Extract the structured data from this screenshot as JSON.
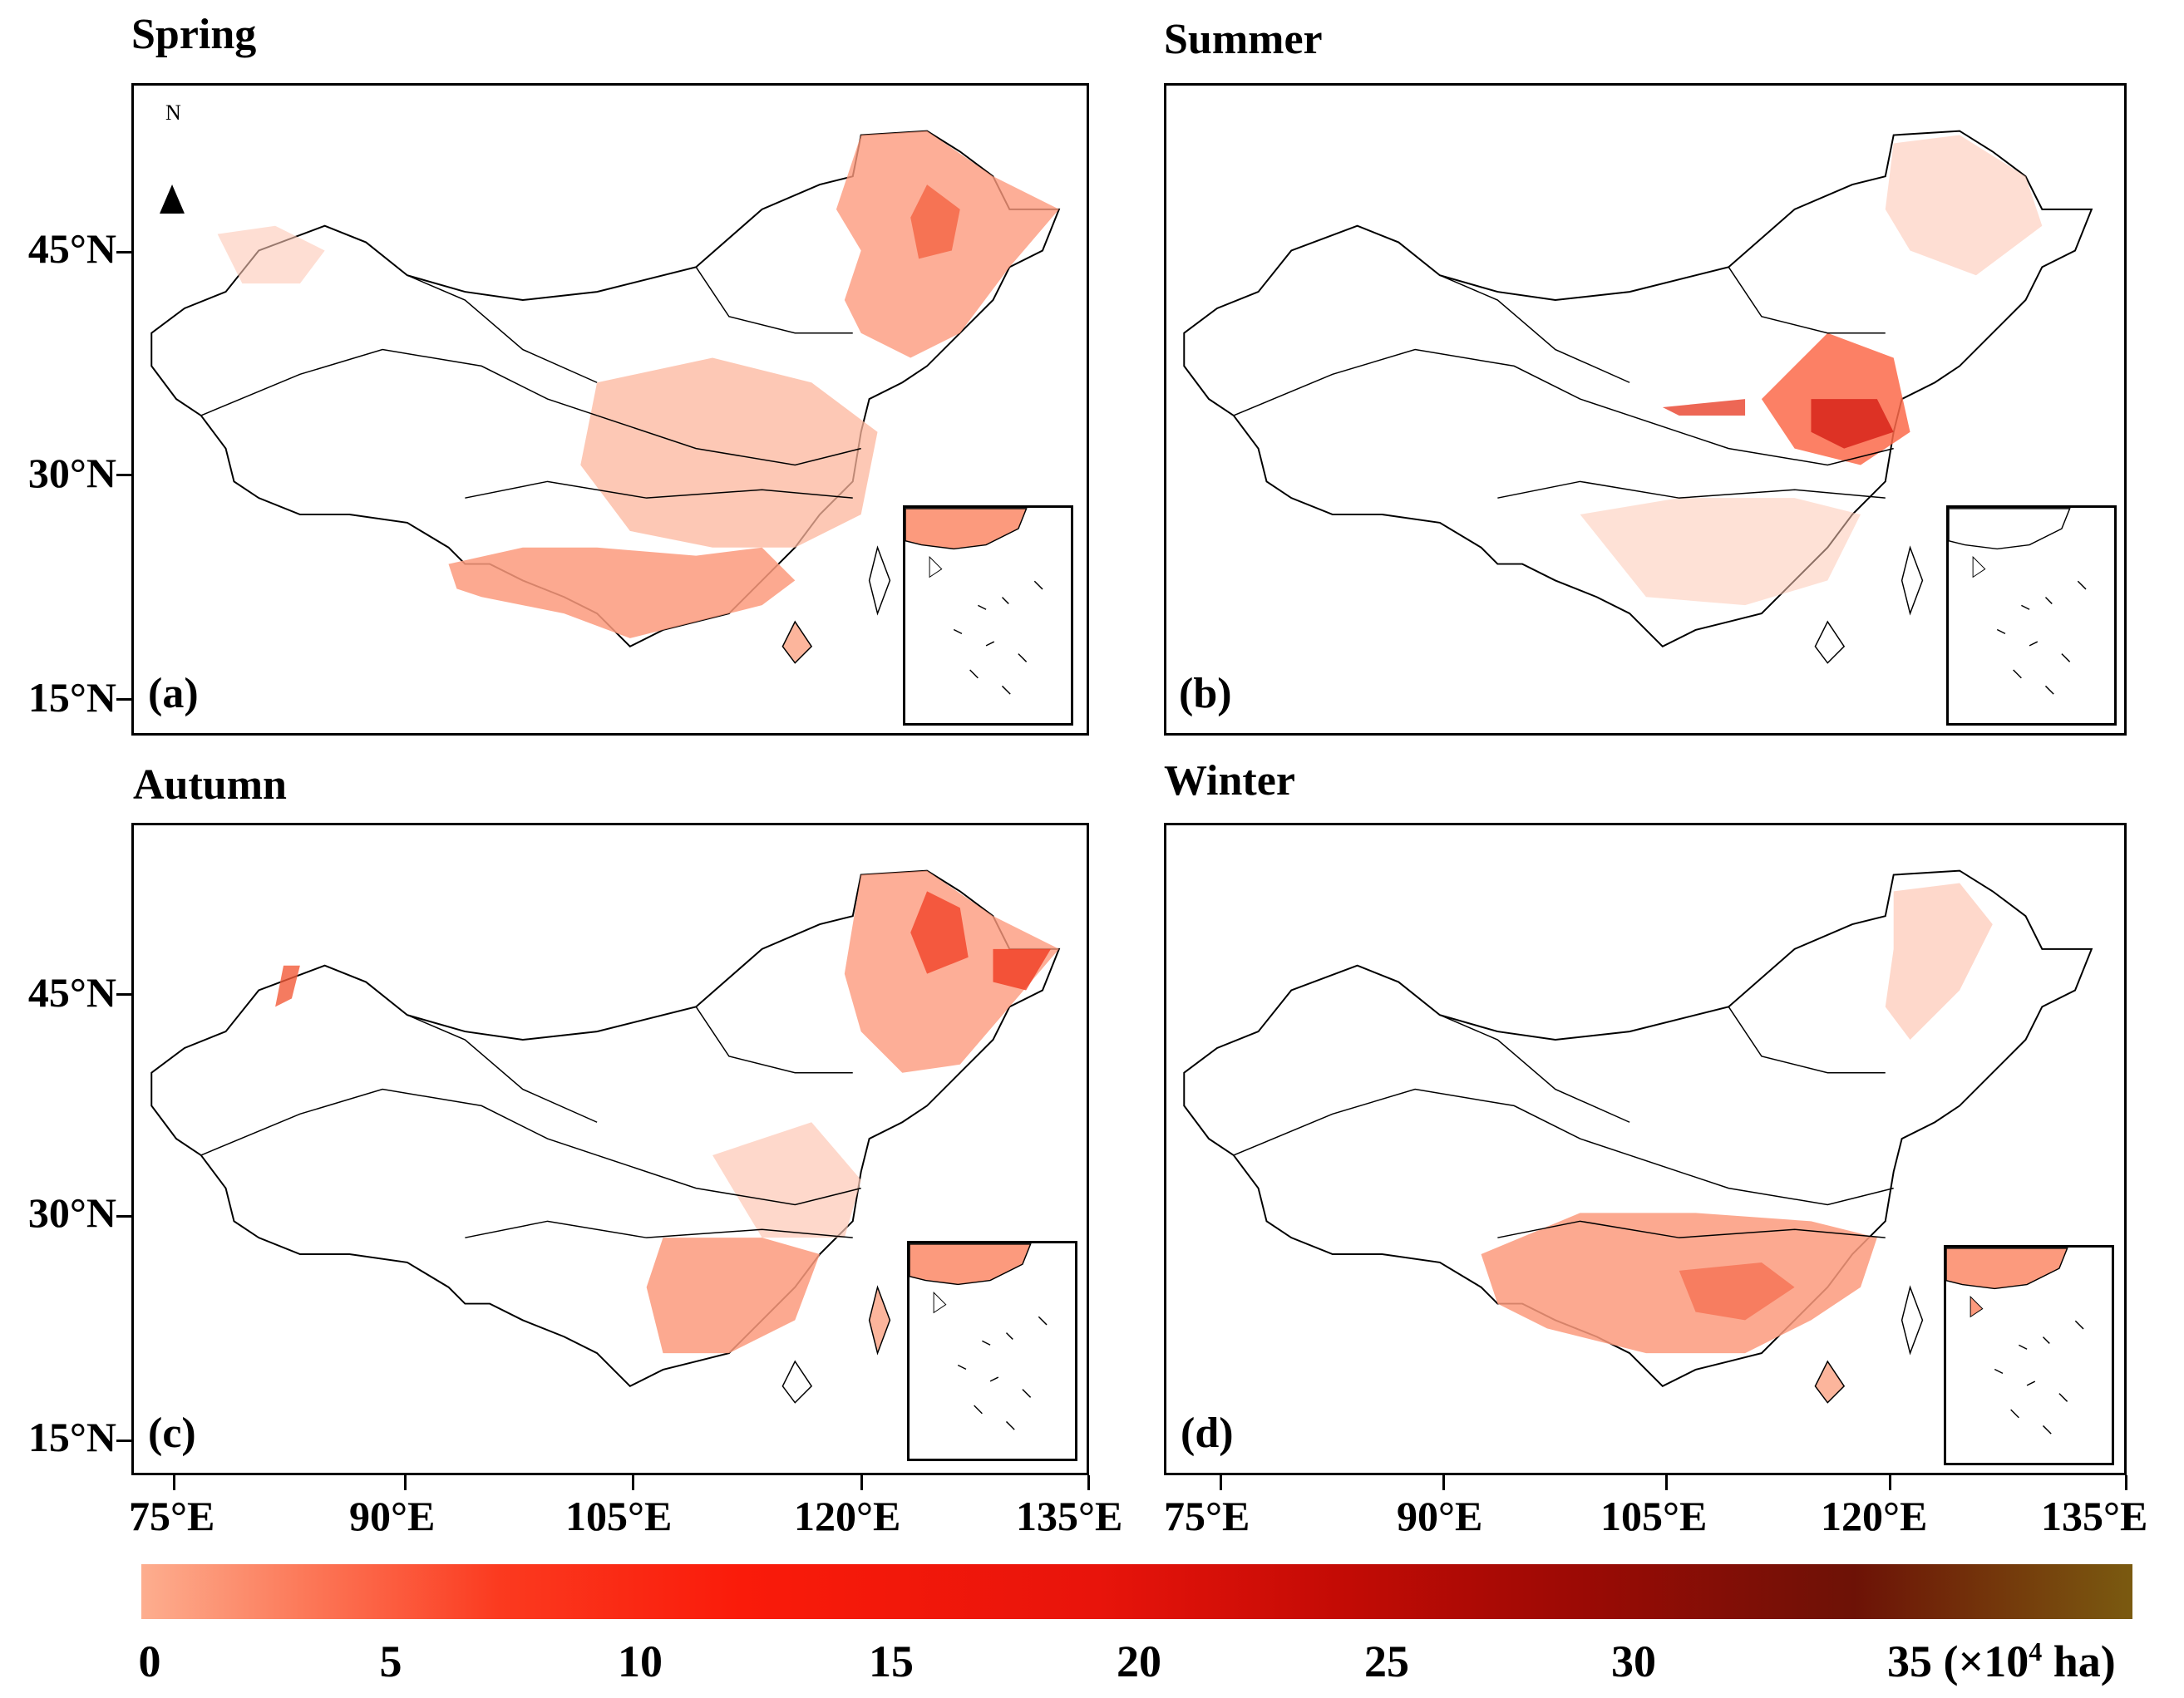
{
  "panels": [
    {
      "title": "Spring",
      "label": "(a)"
    },
    {
      "title": "Summer",
      "label": "(b)"
    },
    {
      "title": "Autumn",
      "label": "(c)"
    },
    {
      "title": "Winter",
      "label": "(d)"
    }
  ],
  "north_arrow": "N",
  "latitudes": [
    "45°N",
    "30°N",
    "15°N"
  ],
  "longitudes": [
    "75°E",
    "90°E",
    "105°E",
    "120°E",
    "135°E"
  ],
  "colorbar": {
    "ticks": [
      "0",
      "5",
      "10",
      "15",
      "20",
      "25",
      "30",
      "35"
    ],
    "unit": "(×10",
    "unit_exp": "4",
    "unit_end": " ha)"
  },
  "colors": {
    "low": "#fdae8f",
    "high": "#7a5a10"
  }
}
